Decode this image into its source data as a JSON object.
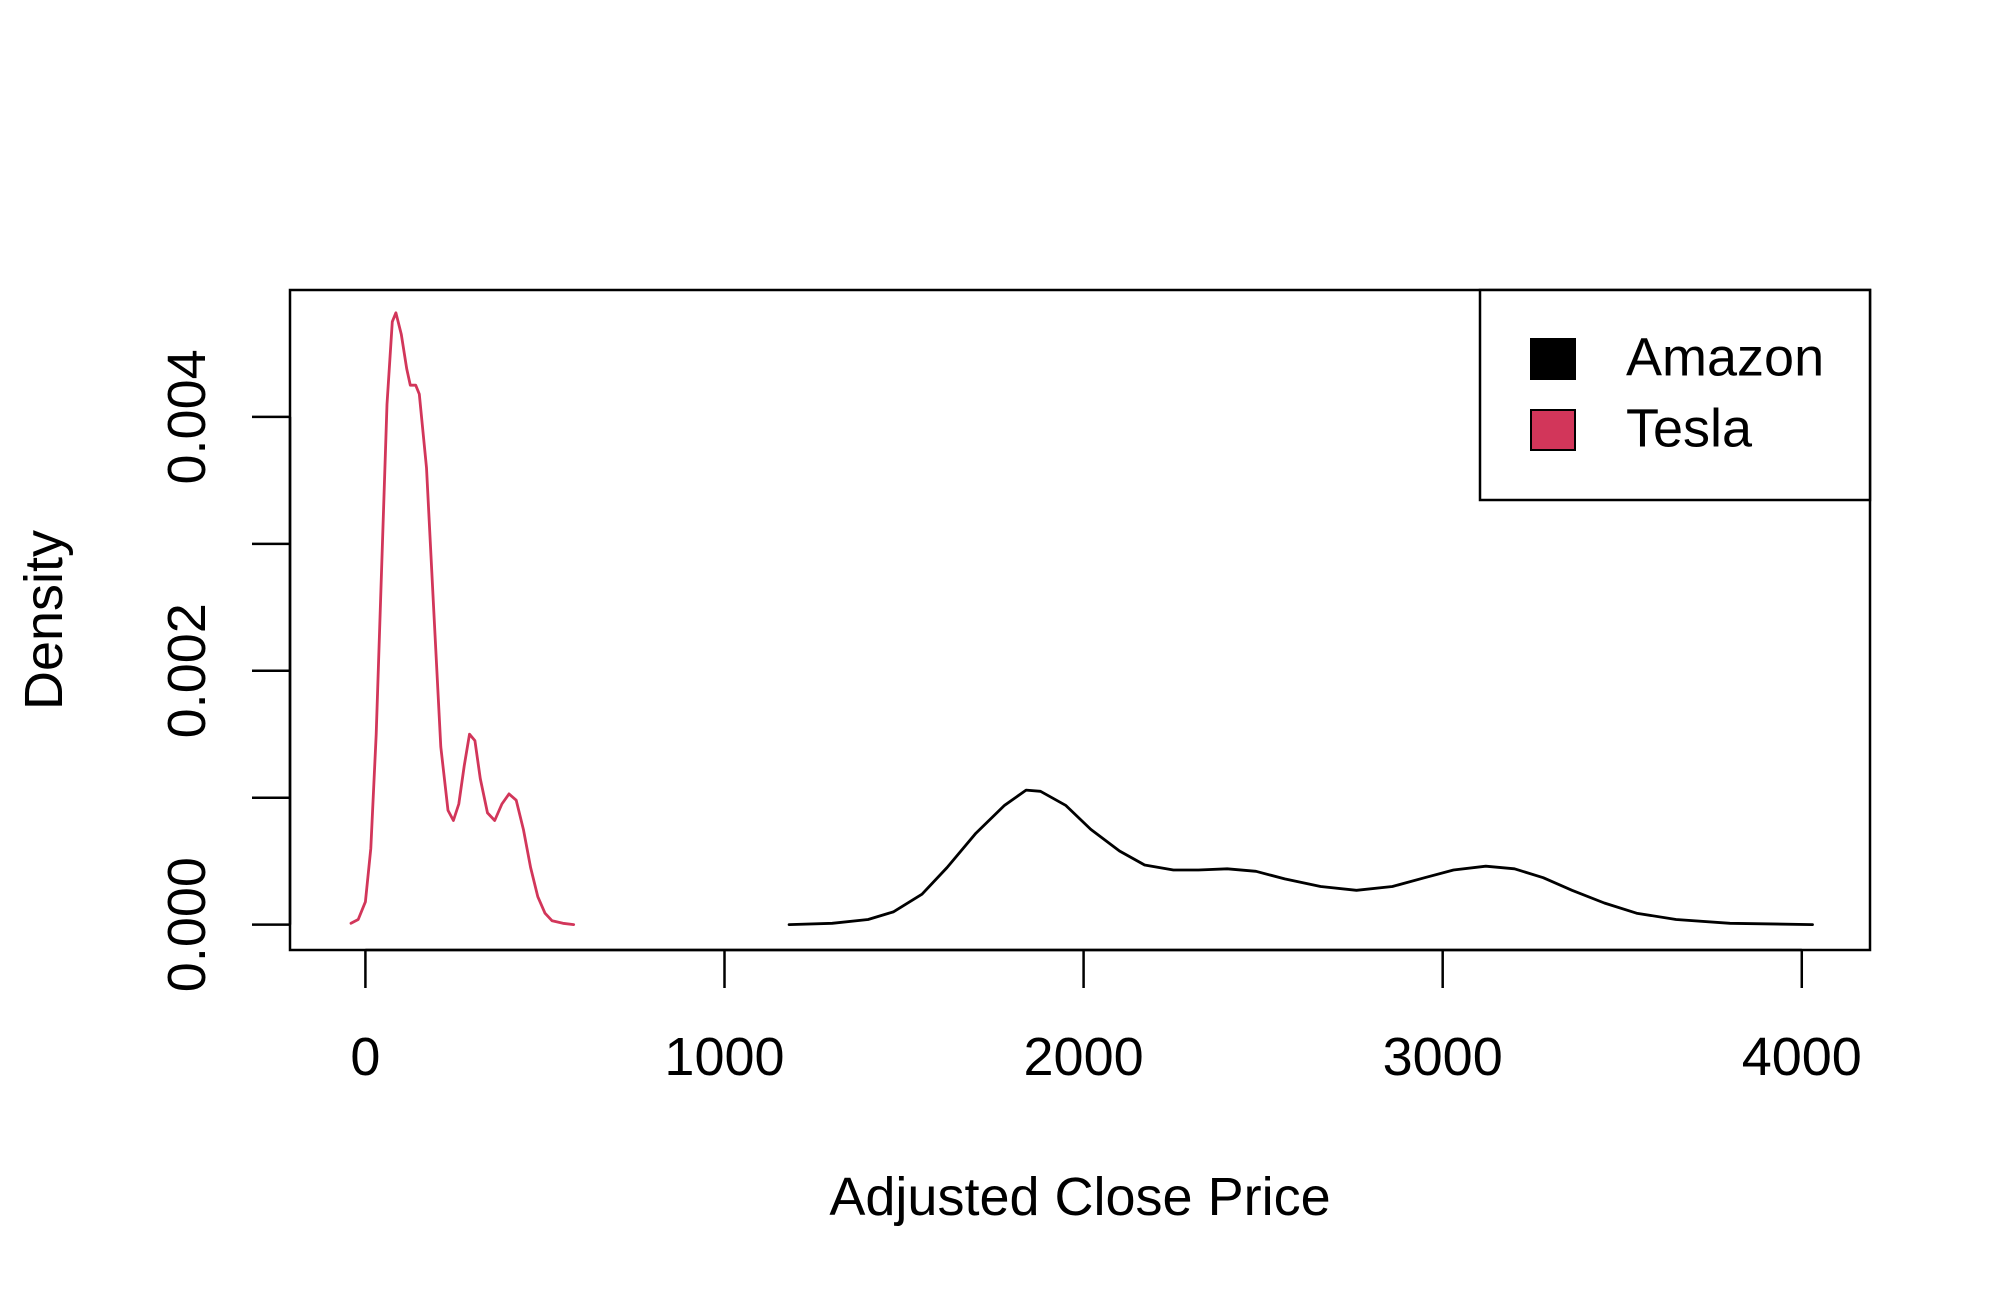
{
  "chart_data": {
    "type": "line",
    "title": "",
    "xlabel": "Adjusted Close Price",
    "ylabel": "Density",
    "xlim": [
      -210,
      4190
    ],
    "ylim": [
      -0.0002,
      0.005
    ],
    "x_ticks": [
      0,
      1000,
      2000,
      3000,
      4000
    ],
    "x_tick_labels": [
      "0",
      "1000",
      "2000",
      "3000",
      "4000"
    ],
    "y_ticks": [
      0.0,
      0.001,
      0.002,
      0.003,
      0.004
    ],
    "y_tick_labels": [
      "0.000",
      "",
      "0.002",
      "",
      "0.004"
    ],
    "grid": false,
    "legend_position": "top-right",
    "series": [
      {
        "name": "Amazon",
        "color": "#000000",
        "points": [
          [
            1180,
            0.0
          ],
          [
            1300,
            1e-05
          ],
          [
            1400,
            4e-05
          ],
          [
            1470,
            0.0001
          ],
          [
            1550,
            0.00024
          ],
          [
            1620,
            0.00045
          ],
          [
            1700,
            0.00072
          ],
          [
            1780,
            0.00094
          ],
          [
            1840,
            0.00106
          ],
          [
            1880,
            0.00105
          ],
          [
            1950,
            0.00094
          ],
          [
            2020,
            0.00075
          ],
          [
            2100,
            0.00058
          ],
          [
            2170,
            0.00047
          ],
          [
            2250,
            0.00043
          ],
          [
            2320,
            0.00043
          ],
          [
            2400,
            0.00044
          ],
          [
            2480,
            0.00042
          ],
          [
            2560,
            0.00036
          ],
          [
            2660,
            0.0003
          ],
          [
            2760,
            0.00027
          ],
          [
            2860,
            0.0003
          ],
          [
            2950,
            0.00037
          ],
          [
            3030,
            0.00043
          ],
          [
            3120,
            0.00046
          ],
          [
            3200,
            0.00044
          ],
          [
            3280,
            0.00037
          ],
          [
            3360,
            0.00027
          ],
          [
            3450,
            0.00017
          ],
          [
            3540,
            9e-05
          ],
          [
            3650,
            4e-05
          ],
          [
            3800,
            1e-05
          ],
          [
            4030,
            0.0
          ]
        ]
      },
      {
        "name": "Tesla",
        "color": "#d2365a",
        "points": [
          [
            -40,
            1e-05
          ],
          [
            -20,
            4e-05
          ],
          [
            0,
            0.00018
          ],
          [
            15,
            0.0006
          ],
          [
            30,
            0.0015
          ],
          [
            45,
            0.0028
          ],
          [
            60,
            0.0041
          ],
          [
            75,
            0.00475
          ],
          [
            85,
            0.00482
          ],
          [
            100,
            0.00465
          ],
          [
            115,
            0.00438
          ],
          [
            125,
            0.00425
          ],
          [
            140,
            0.00425
          ],
          [
            150,
            0.00418
          ],
          [
            170,
            0.0036
          ],
          [
            190,
            0.0025
          ],
          [
            210,
            0.0014
          ],
          [
            230,
            0.0009
          ],
          [
            245,
            0.00082
          ],
          [
            260,
            0.00095
          ],
          [
            275,
            0.00125
          ],
          [
            290,
            0.0015
          ],
          [
            305,
            0.00145
          ],
          [
            320,
            0.00115
          ],
          [
            340,
            0.00088
          ],
          [
            360,
            0.00082
          ],
          [
            380,
            0.00095
          ],
          [
            400,
            0.00103
          ],
          [
            420,
            0.00098
          ],
          [
            440,
            0.00075
          ],
          [
            460,
            0.00045
          ],
          [
            480,
            0.00022
          ],
          [
            500,
            9e-05
          ],
          [
            520,
            3e-05
          ],
          [
            550,
            1e-05
          ],
          [
            580,
            0.0
          ]
        ]
      }
    ]
  }
}
